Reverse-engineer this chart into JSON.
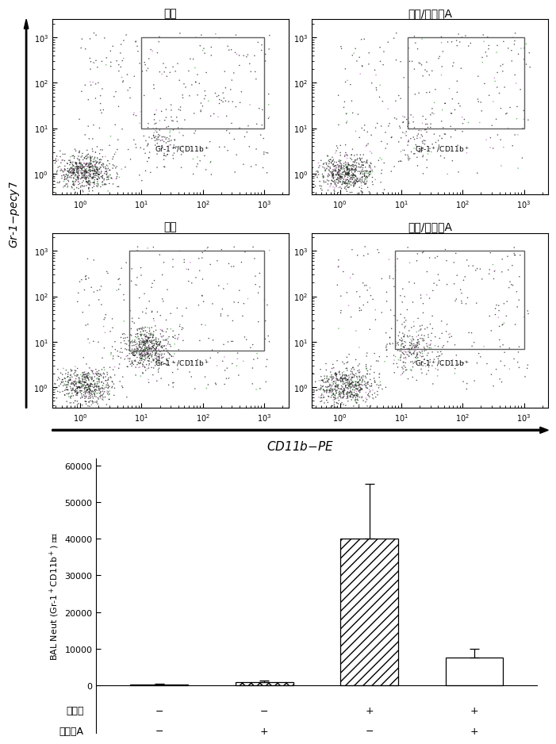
{
  "flow_titles": [
    "正常",
    "正常/化合物A",
    "哮喘",
    "哮喘/化合物A"
  ],
  "ylabel_flow": "Gr-1-pecy7",
  "xlabel_flow": "CD11b-PE",
  "bar_values": [
    300,
    800,
    40000,
    7500
  ],
  "bar_errors": [
    200,
    500,
    15000,
    2500
  ],
  "bar_hatches": [
    "",
    "xxx",
    "///",
    "==="
  ],
  "xticklabels_row1": [
    "−",
    "−",
    "+",
    "+"
  ],
  "xticklabels_row2": [
    "−",
    "+",
    "−",
    "+"
  ],
  "background": "#ffffff",
  "gate_box_color": "#606060"
}
